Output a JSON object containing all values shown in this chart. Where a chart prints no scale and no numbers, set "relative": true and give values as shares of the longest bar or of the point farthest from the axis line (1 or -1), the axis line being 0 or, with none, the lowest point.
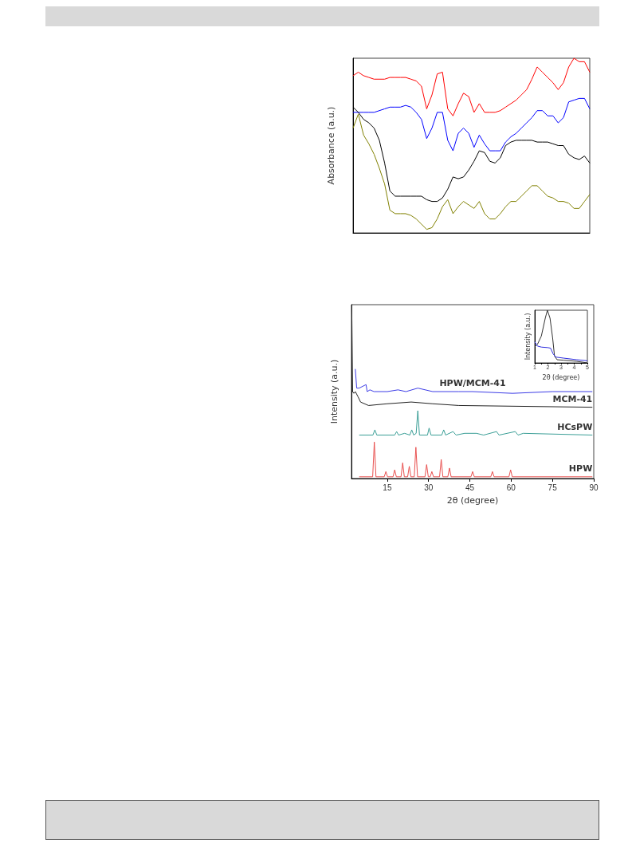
{
  "chart_data": [
    {
      "type": "line",
      "relative": true,
      "ylabel": "Absorbance (a.u.)",
      "tick_labels": false,
      "categories": [
        null,
        null,
        null,
        null,
        null,
        null,
        null,
        null,
        null,
        null,
        null,
        null,
        null,
        null,
        null,
        null,
        null,
        null,
        null,
        null,
        null,
        null,
        null,
        null,
        null,
        null,
        null,
        null,
        null,
        null,
        null,
        null,
        null,
        null,
        null,
        null,
        null,
        null,
        null,
        null,
        null,
        null,
        null,
        null,
        null,
        null
      ],
      "series": [
        {
          "color": "#ff0000",
          "values": [
            0.9,
            0.92,
            0.9,
            0.89,
            0.88,
            0.88,
            0.88,
            0.89,
            0.89,
            0.89,
            0.89,
            0.88,
            0.87,
            0.84,
            0.71,
            0.79,
            0.91,
            0.92,
            0.71,
            0.67,
            0.74,
            0.8,
            0.78,
            0.69,
            0.74,
            0.69,
            0.69,
            0.69,
            0.7,
            0.72,
            0.74,
            0.76,
            0.79,
            0.82,
            0.88,
            0.95,
            0.92,
            0.89,
            0.86,
            0.82,
            0.86,
            0.95,
            1,
            0.98,
            0.98,
            0.92
          ]
        },
        {
          "color": "#0000ff",
          "values": [
            0.69,
            0.69,
            0.69,
            0.69,
            0.69,
            0.7,
            0.71,
            0.72,
            0.72,
            0.72,
            0.73,
            0.72,
            0.69,
            0.65,
            0.54,
            0.6,
            0.69,
            0.69,
            0.53,
            0.47,
            0.57,
            0.6,
            0.57,
            0.49,
            0.56,
            0.51,
            0.47,
            0.47,
            0.47,
            0.52,
            0.55,
            0.57,
            0.6,
            0.63,
            0.66,
            0.7,
            0.7,
            0.67,
            0.67,
            0.63,
            0.66,
            0.75,
            0.76,
            0.77,
            0.77,
            0.71
          ]
        },
        {
          "color": "#000000",
          "values": [
            0.72,
            0.69,
            0.65,
            0.63,
            0.6,
            0.53,
            0.4,
            0.24,
            0.21,
            0.21,
            0.21,
            0.21,
            0.21,
            0.21,
            0.19,
            0.18,
            0.18,
            0.2,
            0.25,
            0.32,
            0.31,
            0.32,
            0.36,
            0.41,
            0.47,
            0.46,
            0.41,
            0.4,
            0.43,
            0.5,
            0.52,
            0.53,
            0.53,
            0.53,
            0.53,
            0.52,
            0.52,
            0.52,
            0.51,
            0.5,
            0.5,
            0.45,
            0.43,
            0.42,
            0.44,
            0.4
          ]
        },
        {
          "color": "#808000",
          "values": [
            0.6,
            0.68,
            0.56,
            0.51,
            0.45,
            0.37,
            0.28,
            0.13,
            0.11,
            0.11,
            0.11,
            0.1,
            0.08,
            0.05,
            0.02,
            0.03,
            0.08,
            0.15,
            0.19,
            0.11,
            0.15,
            0.18,
            0.16,
            0.14,
            0.18,
            0.11,
            0.08,
            0.08,
            0.11,
            0.15,
            0.18,
            0.18,
            0.21,
            0.24,
            0.27,
            0.27,
            0.24,
            0.21,
            0.2,
            0.18,
            0.18,
            0.17,
            0.14,
            0.14,
            0.18,
            0.22
          ]
        }
      ]
    },
    {
      "type": "line",
      "relative": true,
      "xlabel": "2θ (degree)",
      "ylabel": "Intensity (a.u.)",
      "tick_labels": "x",
      "xlim": [
        2,
        90
      ],
      "xticks": [
        15,
        30,
        45,
        60,
        75,
        90
      ],
      "series": [
        {
          "name": "HPW/MCM-41",
          "color": "#3c3ce6",
          "x": [
            3.4,
            3.9,
            4.8,
            7.3,
            7.7,
            8.7,
            10.2,
            15,
            18.9,
            21.8,
            26.1,
            31.5,
            41,
            46,
            60.5,
            75,
            89.5
          ],
          "values": [
            0.63,
            0.52,
            0.52,
            0.54,
            0.5,
            0.51,
            0.5,
            0.5,
            0.51,
            0.5,
            0.52,
            0.5,
            0.5,
            0.5,
            0.49,
            0.5,
            0.5
          ]
        },
        {
          "name": "MCM-41",
          "color": "#222222",
          "x": [
            2.1,
            2.4,
            2.9,
            3.4,
            4.4,
            5.3,
            8.2,
            15,
            23.7,
            31.5,
            41,
            89.5
          ],
          "values": [
            1,
            0.5,
            0.49,
            0.5,
            0.47,
            0.44,
            0.42,
            0.43,
            0.44,
            0.43,
            0.42,
            0.41
          ]
        },
        {
          "name": "HCsPW",
          "color": "#3a9e96",
          "x": [
            4.8,
            9.8,
            10.5,
            11.2,
            17.7,
            18.4,
            19.1,
            21.3,
            23.2,
            23.9,
            24.6,
            25.5,
            26.1,
            26.7,
            29.6,
            30.2,
            30.9,
            34.8,
            35.5,
            36.2,
            38.9,
            40,
            43.1,
            47.4,
            50,
            54.7,
            55.6,
            61.5,
            62.5,
            64.4,
            89.5
          ],
          "values": [
            0.25,
            0.25,
            0.28,
            0.25,
            0.25,
            0.27,
            0.25,
            0.26,
            0.25,
            0.28,
            0.25,
            0.26,
            0.39,
            0.25,
            0.25,
            0.29,
            0.25,
            0.25,
            0.28,
            0.25,
            0.27,
            0.25,
            0.26,
            0.26,
            0.25,
            0.27,
            0.25,
            0.27,
            0.25,
            0.26,
            0.25
          ]
        },
        {
          "name": "HPW",
          "color": "#e8504f",
          "x": [
            4.8,
            9.7,
            10.3,
            10.9,
            13.9,
            14.5,
            15.1,
            17.1,
            17.7,
            18.3,
            20,
            20.6,
            21.2,
            22.4,
            23,
            23.6,
            24.8,
            25.4,
            26,
            28.7,
            29.3,
            29.9,
            30.6,
            31.2,
            31.8,
            34,
            34.6,
            35.2,
            37,
            37.6,
            38.2,
            45.4,
            46,
            46.6,
            52.6,
            53.2,
            53.8,
            59.2,
            59.8,
            60.4,
            89.5
          ],
          "values": [
            0.01,
            0.01,
            0.21,
            0.01,
            0.01,
            0.04,
            0.01,
            0.01,
            0.05,
            0.01,
            0.01,
            0.09,
            0.01,
            0.01,
            0.07,
            0.01,
            0.01,
            0.18,
            0.01,
            0.01,
            0.08,
            0.01,
            0.01,
            0.04,
            0.01,
            0.01,
            0.11,
            0.01,
            0.01,
            0.06,
            0.01,
            0.01,
            0.04,
            0.01,
            0.01,
            0.04,
            0.01,
            0.01,
            0.05,
            0.01,
            0.01
          ]
        }
      ]
    },
    {
      "type": "line",
      "relative": true,
      "xlabel": "2θ (degree)",
      "ylabel": "Intensity (a.u.)",
      "tick_labels": "x",
      "xlim": [
        1,
        5
      ],
      "xticks": [
        1,
        {
          "value": 1.5,
          "label": null
        },
        2,
        {
          "value": 2.5,
          "label": null
        },
        3,
        {
          "value": 3.5,
          "label": null
        },
        4,
        {
          "value": 4.5,
          "label": null
        },
        5
      ],
      "series": [
        {
          "color": "#333333",
          "x": [
            1,
            1.2,
            1.5,
            1.8,
            1.96,
            2.16,
            2.36,
            2.5,
            2.7,
            3.2,
            4.2,
            5
          ],
          "values": [
            0.31,
            0.35,
            0.51,
            0.85,
            1,
            0.85,
            0.47,
            0.13,
            0.06,
            0.05,
            0.03,
            0
          ]
        },
        {
          "color": "#2b2bdd",
          "x": [
            1,
            1.2,
            1.5,
            2,
            2.2,
            2.4,
            2.6,
            3.2,
            4.2,
            5
          ],
          "values": [
            0.4,
            0.32,
            0.3,
            0.29,
            0.28,
            0.17,
            0.11,
            0.09,
            0.06,
            0.04
          ]
        }
      ]
    }
  ]
}
